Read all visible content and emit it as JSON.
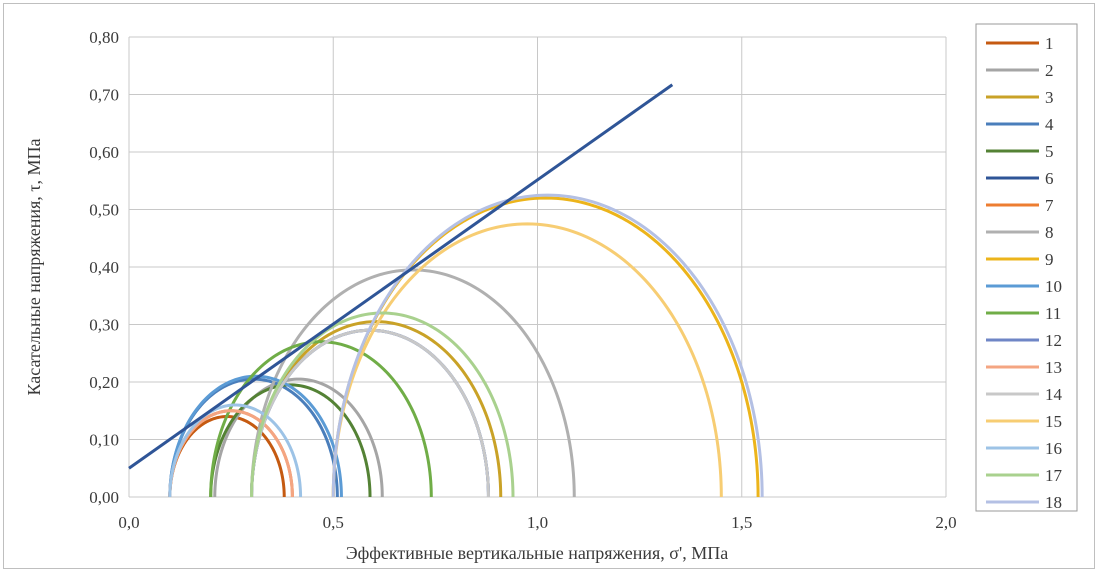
{
  "chart_data": {
    "type": "line",
    "title": "",
    "xlabel": "Эффективные вертикальные напряжения, σ', МПа",
    "ylabel": "Касательные напряжения, τ, МПа",
    "xlim": [
      0.0,
      2.0
    ],
    "ylim": [
      0.0,
      0.8
    ],
    "x_ticks": [
      "0,0",
      "0,5",
      "1,0",
      "1,5",
      "2,0"
    ],
    "x_tick_values": [
      0,
      0.5,
      1.0,
      1.5,
      2.0
    ],
    "y_ticks": [
      "0,00",
      "0,10",
      "0,20",
      "0,30",
      "0,40",
      "0,50",
      "0,60",
      "0,70",
      "0,80"
    ],
    "y_tick_values": [
      0,
      0.1,
      0.2,
      0.3,
      0.4,
      0.5,
      0.6,
      0.7,
      0.8
    ],
    "grid": true,
    "legend_position": "right",
    "envelope": {
      "color": "#2f5597",
      "x": [
        0.0,
        1.33
      ],
      "y": [
        0.05,
        0.717
      ]
    },
    "circles": [
      {
        "name": "1",
        "color": "#c55a11",
        "sigma3": 0.1,
        "sigma1": 0.38
      },
      {
        "name": "2",
        "color": "#a5a5a5",
        "sigma3": 0.21,
        "sigma1": 0.62
      },
      {
        "name": "3",
        "color": "#c9a227",
        "sigma3": 0.3,
        "sigma1": 0.91
      },
      {
        "name": "4",
        "color": "#4a7ebb",
        "sigma3": 0.1,
        "sigma1": 0.51
      },
      {
        "name": "5",
        "color": "#548235",
        "sigma3": 0.2,
        "sigma1": 0.59
      },
      {
        "name": "6",
        "color": "#2f5597",
        "sigma3": 0.3,
        "sigma1": 0.88
      },
      {
        "name": "7",
        "color": "#ed7d31",
        "sigma3": 0.1,
        "sigma1": 0.4
      },
      {
        "name": "8",
        "color": "#b0b0b0",
        "sigma3": 0.3,
        "sigma1": 1.09
      },
      {
        "name": "9",
        "color": "#ecb41b",
        "sigma3": 0.5,
        "sigma1": 1.54
      },
      {
        "name": "10",
        "color": "#5b9bd5",
        "sigma3": 0.1,
        "sigma1": 0.52
      },
      {
        "name": "11",
        "color": "#70ad47",
        "sigma3": 0.2,
        "sigma1": 0.74
      },
      {
        "name": "12",
        "color": "#6f86c6",
        "sigma3": 0.3,
        "sigma1": 0.88
      },
      {
        "name": "13",
        "color": "#f4a582",
        "sigma3": 0.1,
        "sigma1": 0.4
      },
      {
        "name": "14",
        "color": "#c8c8c8",
        "sigma3": 0.3,
        "sigma1": 0.88
      },
      {
        "name": "15",
        "color": "#f7cd73",
        "sigma3": 0.5,
        "sigma1": 1.45
      },
      {
        "name": "16",
        "color": "#9dc3e6",
        "sigma3": 0.1,
        "sigma1": 0.42
      },
      {
        "name": "17",
        "color": "#a9d18e",
        "sigma3": 0.3,
        "sigma1": 0.94
      },
      {
        "name": "18",
        "color": "#b4c0e4",
        "sigma3": 0.5,
        "sigma1": 1.55
      }
    ]
  }
}
